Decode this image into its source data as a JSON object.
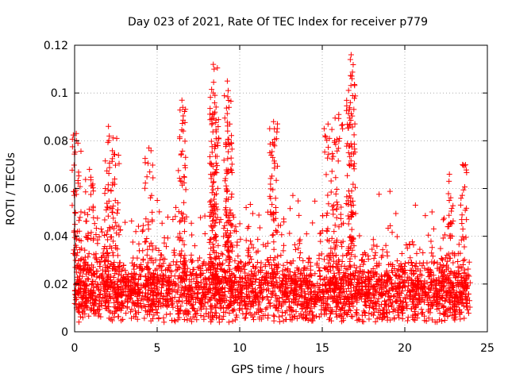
{
  "chart_data": {
    "type": "scatter",
    "title": "Day 023 of 2021, Rate Of TEC Index for receiver p779",
    "xlabel": "GPS time / hours",
    "ylabel": "ROTI / TECUs",
    "xlim": [
      0,
      25
    ],
    "ylim": [
      0,
      0.12
    ],
    "x_ticks": [
      0,
      5,
      10,
      15,
      20,
      25
    ],
    "x_tick_labels": [
      "0",
      "5",
      "10",
      "15",
      "20",
      "25"
    ],
    "y_ticks": [
      0,
      0.02,
      0.04,
      0.06,
      0.08,
      0.1,
      0.12
    ],
    "y_tick_labels": [
      "0",
      "0.02",
      "0.04",
      "0.06",
      "0.08",
      "0.1",
      "0.12"
    ],
    "grid": true,
    "marker": "+",
    "color": "#ff0000",
    "series": [
      {
        "name": "ROTI",
        "x_range": [
          0,
          23.97
        ],
        "baseline_mean": 0.017,
        "baseline_spread": 0.013,
        "notable_points": [
          {
            "x": 0.1,
            "y": 0.083
          },
          {
            "x": 0.2,
            "y": 0.079
          },
          {
            "x": 0.9,
            "y": 0.068
          },
          {
            "x": 2.05,
            "y": 0.086
          },
          {
            "x": 2.1,
            "y": 0.082
          },
          {
            "x": 2.55,
            "y": 0.081
          },
          {
            "x": 4.5,
            "y": 0.077
          },
          {
            "x": 6.5,
            "y": 0.097
          },
          {
            "x": 6.55,
            "y": 0.094
          },
          {
            "x": 8.4,
            "y": 0.112
          },
          {
            "x": 8.45,
            "y": 0.11
          },
          {
            "x": 8.4,
            "y": 0.1
          },
          {
            "x": 8.5,
            "y": 0.099
          },
          {
            "x": 8.5,
            "y": 0.092
          },
          {
            "x": 9.25,
            "y": 0.105
          },
          {
            "x": 9.3,
            "y": 0.101
          },
          {
            "x": 9.35,
            "y": 0.094
          },
          {
            "x": 9.4,
            "y": 0.087
          },
          {
            "x": 12.05,
            "y": 0.088
          },
          {
            "x": 12.1,
            "y": 0.085
          },
          {
            "x": 15.35,
            "y": 0.087
          },
          {
            "x": 16.0,
            "y": 0.091
          },
          {
            "x": 15.75,
            "y": 0.08
          },
          {
            "x": 16.75,
            "y": 0.116
          },
          {
            "x": 16.7,
            "y": 0.114
          },
          {
            "x": 16.8,
            "y": 0.106
          },
          {
            "x": 16.7,
            "y": 0.096
          },
          {
            "x": 22.7,
            "y": 0.066
          },
          {
            "x": 23.5,
            "y": 0.07
          }
        ]
      }
    ]
  }
}
